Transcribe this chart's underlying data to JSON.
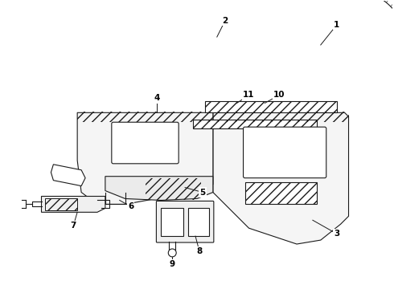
{
  "bg_color": "#ffffff",
  "line_color": "#1a1a1a",
  "label_color": "#000000",
  "figsize": [
    4.9,
    3.6
  ],
  "dpi": 100,
  "parts": {
    "part1_label": "1",
    "part2_label": "2",
    "part3_label": "3",
    "part4_label": "4",
    "part5_label": "5",
    "part6_label": "6",
    "part7_label": "7",
    "part8_label": "8",
    "part9_label": "9",
    "part10_label": "10",
    "part11_label": "11"
  }
}
